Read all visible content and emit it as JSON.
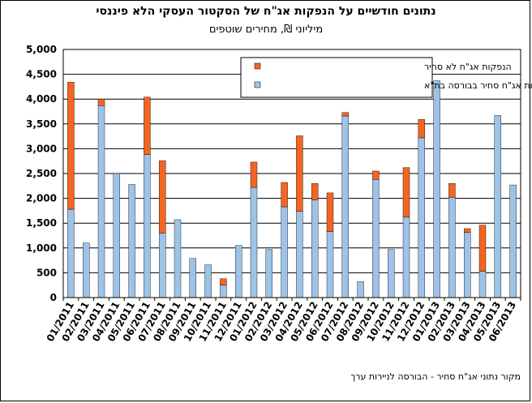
{
  "chart_data": {
    "type": "bar",
    "stacked": true,
    "title": "נתונים חודשיים על הנפקות אג\"ח של הסקטור העסקי הלא פיננסי",
    "subtitle": "מיליוני ₪, מחירים שוטפים",
    "source": "מקור נתוני אג\"ח סחיר - הבורסה לניירות ערך",
    "ylim": [
      0,
      5000
    ],
    "yticks": [
      "0",
      "500",
      "1,000",
      "1,500",
      "2,000",
      "2,500",
      "3,000",
      "3,500",
      "4,000",
      "4,500",
      "5,000"
    ],
    "grid": true,
    "legend_position": "top-center",
    "categories": [
      "01/2011",
      "02/2011",
      "03/2011",
      "04/2011",
      "05/2011",
      "06/2011",
      "07/2011",
      "08/2011",
      "09/2011",
      "10/2011",
      "11/2011",
      "12/2011",
      "01/2012",
      "02/2012",
      "03/2012",
      "04/2012",
      "05/2012",
      "06/2012",
      "07/2012",
      "08/2012",
      "09/2012",
      "10/2012",
      "11/2012",
      "12/2012",
      "01/2013",
      "02/2013",
      "03/2013",
      "04/2013",
      "05/2013",
      "06/2013"
    ],
    "series": [
      {
        "name": "הנפקות אג\"ח סחיר בבורסה בת\"א",
        "color": "#9DC3E6",
        "values": [
          1780,
          1100,
          3870,
          2500,
          2280,
          2880,
          1300,
          1570,
          790,
          660,
          250,
          1050,
          2220,
          970,
          1830,
          1740,
          1970,
          1330,
          3660,
          320,
          2380,
          970,
          1620,
          3220,
          4370,
          2020,
          1310,
          530,
          3670,
          2270
        ]
      },
      {
        "name": "הנפקות אג\"ח לא סחיר",
        "color": "#F26522",
        "values": [
          2560,
          0,
          130,
          0,
          0,
          1160,
          1460,
          0,
          0,
          0,
          130,
          0,
          510,
          0,
          490,
          1520,
          330,
          780,
          70,
          0,
          170,
          0,
          1000,
          370,
          0,
          280,
          80,
          930,
          0,
          0
        ]
      }
    ]
  },
  "colors": {
    "axis": "#000000",
    "grid": "#000000",
    "background": "#ffffff"
  }
}
